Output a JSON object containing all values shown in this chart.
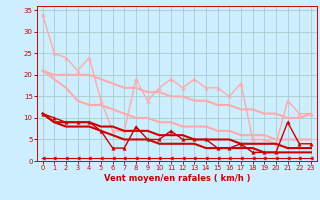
{
  "background_color": "#cceeff",
  "grid_color": "#aacccc",
  "xlabel": "Vent moyen/en rafales ( km/h )",
  "xlabel_color": "#cc0000",
  "tick_color": "#cc0000",
  "xlim": [
    -0.5,
    23.5
  ],
  "ylim": [
    0,
    36
  ],
  "yticks": [
    0,
    5,
    10,
    15,
    20,
    25,
    30,
    35
  ],
  "xticks": [
    0,
    1,
    2,
    3,
    4,
    5,
    6,
    7,
    8,
    9,
    10,
    11,
    12,
    13,
    14,
    15,
    16,
    17,
    18,
    19,
    20,
    21,
    22,
    23
  ],
  "series": [
    {
      "x": [
        0,
        1,
        2,
        3,
        4,
        5,
        6,
        7,
        8,
        9,
        10,
        11,
        12,
        13,
        14,
        15,
        16,
        17,
        18,
        19,
        20,
        21,
        22,
        23
      ],
      "y": [
        34,
        25,
        24,
        21,
        24,
        14,
        7,
        7,
        19,
        14,
        17,
        19,
        17,
        19,
        17,
        17,
        15,
        18,
        5,
        5,
        4,
        14,
        11,
        11
      ],
      "color": "#ffaaaa",
      "lw": 1.0,
      "marker": "^",
      "ms": 2.5
    },
    {
      "x": [
        0,
        1,
        2,
        3,
        4,
        5,
        6,
        7,
        8,
        9,
        10,
        11,
        12,
        13,
        14,
        15,
        16,
        17,
        18,
        19,
        20,
        21,
        22,
        23
      ],
      "y": [
        21,
        20,
        20,
        20,
        20,
        19,
        18,
        17,
        17,
        16,
        16,
        15,
        15,
        14,
        14,
        13,
        13,
        12,
        12,
        11,
        11,
        10,
        10,
        11
      ],
      "color": "#ffaaaa",
      "lw": 1.5,
      "marker": null,
      "ms": 0
    },
    {
      "x": [
        0,
        1,
        2,
        3,
        4,
        5,
        6,
        7,
        8,
        9,
        10,
        11,
        12,
        13,
        14,
        15,
        16,
        17,
        18,
        19,
        20,
        21,
        22,
        23
      ],
      "y": [
        21,
        19,
        17,
        14,
        13,
        13,
        12,
        11,
        10,
        10,
        9,
        9,
        8,
        8,
        8,
        7,
        7,
        6,
        6,
        6,
        5,
        5,
        5,
        5
      ],
      "color": "#ffaaaa",
      "lw": 1.5,
      "marker": null,
      "ms": 0
    },
    {
      "x": [
        0,
        1,
        2,
        3,
        4,
        5,
        6,
        7,
        8,
        9,
        10,
        11,
        12,
        13,
        14,
        15,
        16,
        17,
        18,
        19,
        20,
        21,
        22,
        23
      ],
      "y": [
        11,
        10,
        9,
        9,
        9,
        7,
        3,
        3,
        8,
        5,
        5,
        7,
        5,
        5,
        5,
        3,
        3,
        4,
        2,
        2,
        2,
        9,
        4,
        4
      ],
      "color": "#cc0000",
      "lw": 1.0,
      "marker": "^",
      "ms": 2.5
    },
    {
      "x": [
        0,
        1,
        2,
        3,
        4,
        5,
        6,
        7,
        8,
        9,
        10,
        11,
        12,
        13,
        14,
        15,
        16,
        17,
        18,
        19,
        20,
        21,
        22,
        23
      ],
      "y": [
        11,
        9,
        9,
        9,
        9,
        8,
        8,
        7,
        7,
        7,
        6,
        6,
        6,
        5,
        5,
        5,
        5,
        4,
        4,
        4,
        4,
        3,
        3,
        3
      ],
      "color": "#cc0000",
      "lw": 1.5,
      "marker": null,
      "ms": 0
    },
    {
      "x": [
        0,
        1,
        2,
        3,
        4,
        5,
        6,
        7,
        8,
        9,
        10,
        11,
        12,
        13,
        14,
        15,
        16,
        17,
        18,
        19,
        20,
        21,
        22,
        23
      ],
      "y": [
        11,
        9,
        8,
        8,
        8,
        7,
        6,
        5,
        5,
        5,
        4,
        4,
        4,
        4,
        3,
        3,
        3,
        3,
        3,
        2,
        2,
        2,
        2,
        2
      ],
      "color": "#cc0000",
      "lw": 1.5,
      "marker": null,
      "ms": 0
    },
    {
      "x": [
        0,
        1,
        2,
        3,
        4,
        5,
        6,
        7,
        8,
        9,
        10,
        11,
        12,
        13,
        14,
        15,
        16,
        17,
        18,
        19,
        20,
        21,
        22,
        23
      ],
      "y": [
        0.8,
        0.8,
        0.8,
        0.8,
        0.8,
        0.8,
        0.8,
        0.8,
        0.8,
        0.8,
        0.8,
        0.8,
        0.8,
        0.8,
        0.8,
        0.8,
        0.8,
        0.8,
        0.8,
        0.8,
        0.8,
        0.8,
        0.8,
        0.8
      ],
      "color": "#cc0000",
      "lw": 0.8,
      "marker": "<",
      "ms": 2.5
    }
  ]
}
